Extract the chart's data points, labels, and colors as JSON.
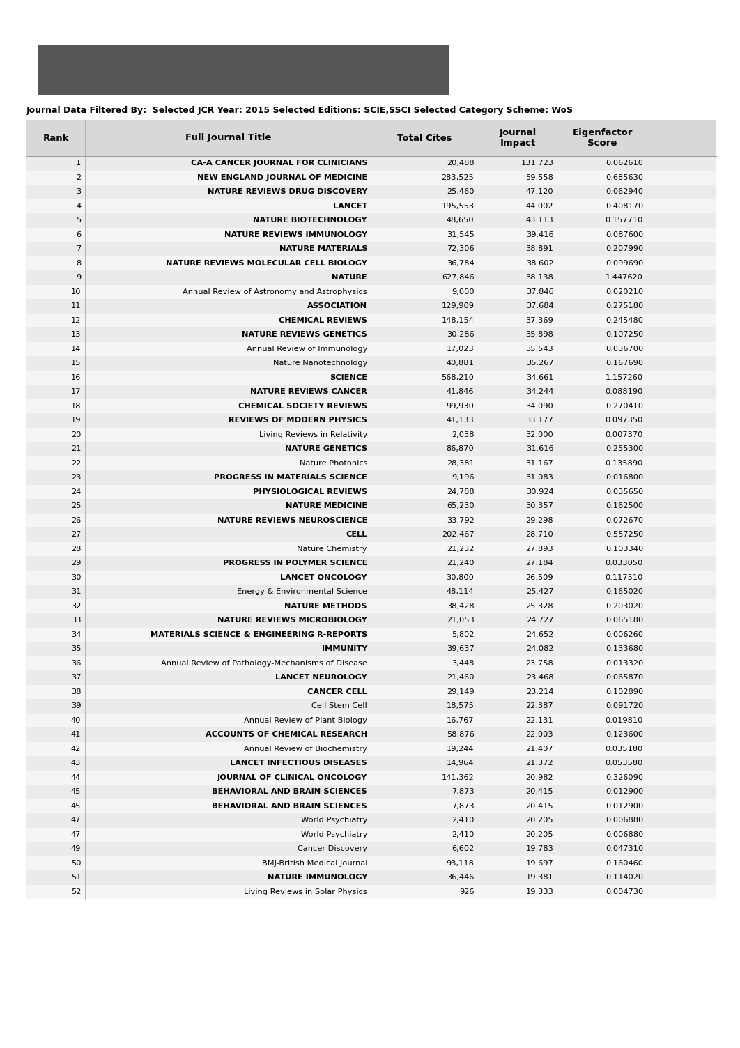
{
  "filter_text": "Journal Data Filtered By:  Selected JCR Year: 2015 Selected Editions: SCIE,SSCI Selected Category Scheme: WoS",
  "rows": [
    [
      "1",
      "CA-A CANCER JOURNAL FOR CLINICIANS",
      "20,488",
      "131.723",
      "0.062610",
      true
    ],
    [
      "2",
      "NEW ENGLAND JOURNAL OF MEDICINE",
      "283,525",
      "59.558",
      "0.685630",
      true
    ],
    [
      "3",
      "NATURE REVIEWS DRUG DISCOVERY",
      "25,460",
      "47.120",
      "0.062940",
      true
    ],
    [
      "4",
      "LANCET",
      "195,553",
      "44.002",
      "0.408170",
      true
    ],
    [
      "5",
      "NATURE BIOTECHNOLOGY",
      "48,650",
      "43.113",
      "0.157710",
      true
    ],
    [
      "6",
      "NATURE REVIEWS IMMUNOLOGY",
      "31,545",
      "39.416",
      "0.087600",
      true
    ],
    [
      "7",
      "NATURE MATERIALS",
      "72,306",
      "38.891",
      "0.207990",
      true
    ],
    [
      "8",
      "NATURE REVIEWS MOLECULAR CELL BIOLOGY",
      "36,784",
      "38.602",
      "0.099690",
      true
    ],
    [
      "9",
      "NATURE",
      "627,846",
      "38.138",
      "1.447620",
      true
    ],
    [
      "10",
      "Annual Review of Astronomy and Astrophysics",
      "9,000",
      "37.846",
      "0.020210",
      false
    ],
    [
      "11",
      "ASSOCIATION",
      "129,909",
      "37.684",
      "0.275180",
      true
    ],
    [
      "12",
      "CHEMICAL REVIEWS",
      "148,154",
      "37.369",
      "0.245480",
      true
    ],
    [
      "13",
      "NATURE REVIEWS GENETICS",
      "30,286",
      "35.898",
      "0.107250",
      true
    ],
    [
      "14",
      "Annual Review of Immunology",
      "17,023",
      "35.543",
      "0.036700",
      false
    ],
    [
      "15",
      "Nature Nanotechnology",
      "40,881",
      "35.267",
      "0.167690",
      false
    ],
    [
      "16",
      "SCIENCE",
      "568,210",
      "34.661",
      "1.157260",
      true
    ],
    [
      "17",
      "NATURE REVIEWS CANCER",
      "41,846",
      "34.244",
      "0.088190",
      true
    ],
    [
      "18",
      "CHEMICAL SOCIETY REVIEWS",
      "99,930",
      "34.090",
      "0.270410",
      true
    ],
    [
      "19",
      "REVIEWS OF MODERN PHYSICS",
      "41,133",
      "33.177",
      "0.097350",
      true
    ],
    [
      "20",
      "Living Reviews in Relativity",
      "2,038",
      "32.000",
      "0.007370",
      false
    ],
    [
      "21",
      "NATURE GENETICS",
      "86,870",
      "31.616",
      "0.255300",
      true
    ],
    [
      "22",
      "Nature Photonics",
      "28,381",
      "31.167",
      "0.135890",
      false
    ],
    [
      "23",
      "PROGRESS IN MATERIALS SCIENCE",
      "9,196",
      "31.083",
      "0.016800",
      true
    ],
    [
      "24",
      "PHYSIOLOGICAL REVIEWS",
      "24,788",
      "30.924",
      "0.035650",
      true
    ],
    [
      "25",
      "NATURE MEDICINE",
      "65,230",
      "30.357",
      "0.162500",
      true
    ],
    [
      "26",
      "NATURE REVIEWS NEUROSCIENCE",
      "33,792",
      "29.298",
      "0.072670",
      true
    ],
    [
      "27",
      "CELL",
      "202,467",
      "28.710",
      "0.557250",
      true
    ],
    [
      "28",
      "Nature Chemistry",
      "21,232",
      "27.893",
      "0.103340",
      false
    ],
    [
      "29",
      "PROGRESS IN POLYMER SCIENCE",
      "21,240",
      "27.184",
      "0.033050",
      true
    ],
    [
      "30",
      "LANCET ONCOLOGY",
      "30,800",
      "26.509",
      "0.117510",
      true
    ],
    [
      "31",
      "Energy & Environmental Science",
      "48,114",
      "25.427",
      "0.165020",
      false
    ],
    [
      "32",
      "NATURE METHODS",
      "38,428",
      "25.328",
      "0.203020",
      true
    ],
    [
      "33",
      "NATURE REVIEWS MICROBIOLOGY",
      "21,053",
      "24.727",
      "0.065180",
      true
    ],
    [
      "34",
      "MATERIALS SCIENCE & ENGINEERING R-REPORTS",
      "5,802",
      "24.652",
      "0.006260",
      true
    ],
    [
      "35",
      "IMMUNITY",
      "39,637",
      "24.082",
      "0.133680",
      true
    ],
    [
      "36",
      "Annual Review of Pathology-Mechanisms of Disease",
      "3,448",
      "23.758",
      "0.013320",
      false
    ],
    [
      "37",
      "LANCET NEUROLOGY",
      "21,460",
      "23.468",
      "0.065870",
      true
    ],
    [
      "38",
      "CANCER CELL",
      "29,149",
      "23.214",
      "0.102890",
      true
    ],
    [
      "39",
      "Cell Stem Cell",
      "18,575",
      "22.387",
      "0.091720",
      false
    ],
    [
      "40",
      "Annual Review of Plant Biology",
      "16,767",
      "22.131",
      "0.019810",
      false
    ],
    [
      "41",
      "ACCOUNTS OF CHEMICAL RESEARCH",
      "58,876",
      "22.003",
      "0.123600",
      true
    ],
    [
      "42",
      "Annual Review of Biochemistry",
      "19,244",
      "21.407",
      "0.035180",
      false
    ],
    [
      "43",
      "LANCET INFECTIOUS DISEASES",
      "14,964",
      "21.372",
      "0.053580",
      true
    ],
    [
      "44",
      "JOURNAL OF CLINICAL ONCOLOGY",
      "141,362",
      "20.982",
      "0.326090",
      true
    ],
    [
      "45",
      "BEHAVIORAL AND BRAIN SCIENCES",
      "7,873",
      "20.415",
      "0.012900",
      true
    ],
    [
      "45",
      "BEHAVIORAL AND BRAIN SCIENCES",
      "7,873",
      "20.415",
      "0.012900",
      true
    ],
    [
      "47",
      "World Psychiatry",
      "2,410",
      "20.205",
      "0.006880",
      false
    ],
    [
      "47",
      "World Psychiatry",
      "2,410",
      "20.205",
      "0.006880",
      false
    ],
    [
      "49",
      "Cancer Discovery",
      "6,602",
      "19.783",
      "0.047310",
      false
    ],
    [
      "50",
      "BMJ-British Medical Journal",
      "93,118",
      "19.697",
      "0.160460",
      false
    ],
    [
      "51",
      "NATURE IMMUNOLOGY",
      "36,446",
      "19.381",
      "0.114020",
      true
    ],
    [
      "52",
      "Living Reviews in Solar Physics",
      "926",
      "19.333",
      "0.004730",
      false
    ]
  ],
  "page_bg": "#ffffff",
  "table_bg": "#e0e0e0",
  "header_bg": "#d8d8d8",
  "row_bg_odd": "#ebebeb",
  "row_bg_even": "#f5f5f5",
  "dark_bar_color": "#555555",
  "filter_fontsize": 9.0,
  "header_fontsize": 9.5,
  "row_fontsize": 8.2,
  "fig_width": 10.62,
  "fig_height": 15.04,
  "dpi": 100
}
